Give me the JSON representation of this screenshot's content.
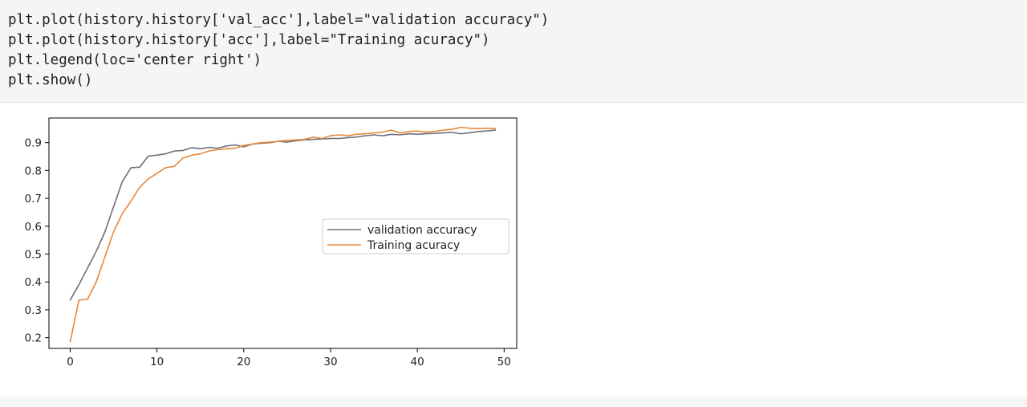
{
  "code_cell": {
    "lines": [
      "plt.plot(history.history['val_acc'],label=\"validation accuracy\")",
      "plt.plot(history.history['acc'],label=\"Training acuracy\")",
      "plt.legend(loc='center right')",
      "plt.show()"
    ]
  },
  "chart_data": {
    "type": "line",
    "title": "",
    "xlabel": "",
    "ylabel": "",
    "xlim": [
      -2.45,
      51.45
    ],
    "ylim": [
      0.1615,
      0.9885
    ],
    "xticks": [
      0,
      10,
      20,
      30,
      40,
      50
    ],
    "yticks": [
      0.2,
      0.3,
      0.4,
      0.5,
      0.6,
      0.7,
      0.8,
      0.9
    ],
    "grid": false,
    "legend_position": "center right",
    "series": [
      {
        "name": "validation accuracy",
        "color": "#6e6e7e",
        "x": [
          0,
          1,
          2,
          3,
          4,
          5,
          6,
          7,
          8,
          9,
          10,
          11,
          12,
          13,
          14,
          15,
          16,
          17,
          18,
          19,
          20,
          21,
          22,
          23,
          24,
          25,
          26,
          27,
          28,
          29,
          30,
          31,
          32,
          33,
          34,
          35,
          36,
          37,
          38,
          39,
          40,
          41,
          42,
          43,
          44,
          45,
          46,
          47,
          48,
          49
        ],
        "values": [
          0.335,
          0.39,
          0.45,
          0.51,
          0.58,
          0.67,
          0.76,
          0.81,
          0.812,
          0.852,
          0.855,
          0.86,
          0.87,
          0.872,
          0.882,
          0.878,
          0.883,
          0.88,
          0.888,
          0.892,
          0.885,
          0.895,
          0.898,
          0.9,
          0.905,
          0.902,
          0.907,
          0.91,
          0.912,
          0.913,
          0.915,
          0.915,
          0.918,
          0.92,
          0.925,
          0.928,
          0.925,
          0.93,
          0.928,
          0.932,
          0.93,
          0.932,
          0.933,
          0.935,
          0.937,
          0.932,
          0.935,
          0.94,
          0.942,
          0.945
        ]
      },
      {
        "name": "Training acuracy",
        "color": "#e8883a",
        "x": [
          0,
          1,
          2,
          3,
          4,
          5,
          6,
          7,
          8,
          9,
          10,
          11,
          12,
          13,
          14,
          15,
          16,
          17,
          18,
          19,
          20,
          21,
          22,
          23,
          24,
          25,
          26,
          27,
          28,
          29,
          30,
          31,
          32,
          33,
          34,
          35,
          36,
          37,
          38,
          39,
          40,
          41,
          42,
          43,
          44,
          45,
          46,
          47,
          48,
          49
        ],
        "values": [
          0.185,
          0.335,
          0.338,
          0.4,
          0.49,
          0.58,
          0.645,
          0.69,
          0.74,
          0.77,
          0.79,
          0.81,
          0.815,
          0.845,
          0.855,
          0.86,
          0.87,
          0.875,
          0.878,
          0.88,
          0.89,
          0.895,
          0.9,
          0.902,
          0.905,
          0.908,
          0.91,
          0.912,
          0.92,
          0.915,
          0.925,
          0.928,
          0.925,
          0.93,
          0.932,
          0.935,
          0.938,
          0.945,
          0.935,
          0.94,
          0.942,
          0.938,
          0.94,
          0.945,
          0.948,
          0.955,
          0.952,
          0.95,
          0.952,
          0.95
        ]
      }
    ]
  }
}
